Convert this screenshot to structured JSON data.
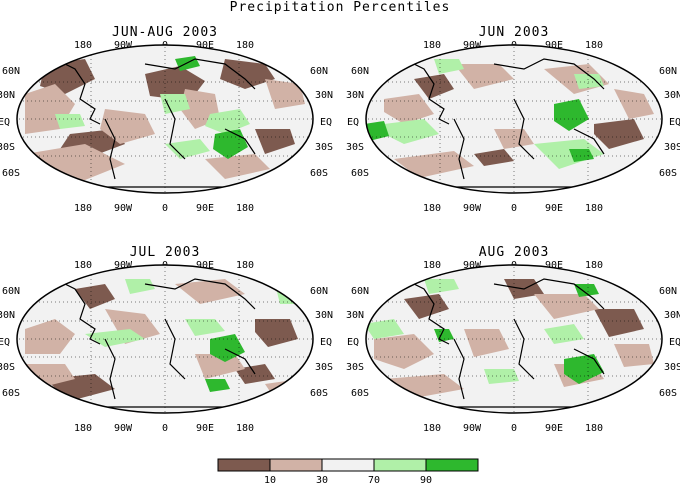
{
  "title": "Precipitation Percentiles",
  "colors": {
    "very_dry": "#7d5a4f",
    "dry": "#d1b2a6",
    "normal": "#f2f2f2",
    "wet": "#b0f0a8",
    "very_wet": "#2eb82e",
    "outline": "#000000"
  },
  "map_labels": {
    "lon": [
      "180",
      "90W",
      "0",
      "90E",
      "180"
    ],
    "lat": [
      "60N",
      "30N",
      "EQ",
      "30S",
      "60S"
    ]
  },
  "panels": [
    {
      "title": "JUN-AUG 2003"
    },
    {
      "title": "JUN 2003"
    },
    {
      "title": "JUL 2003"
    },
    {
      "title": "AUG 2003"
    }
  ],
  "legend": {
    "classes": [
      "very_dry",
      "dry",
      "normal",
      "wet",
      "very_wet"
    ],
    "breaks": [
      "10",
      "30",
      "70",
      "90"
    ]
  }
}
